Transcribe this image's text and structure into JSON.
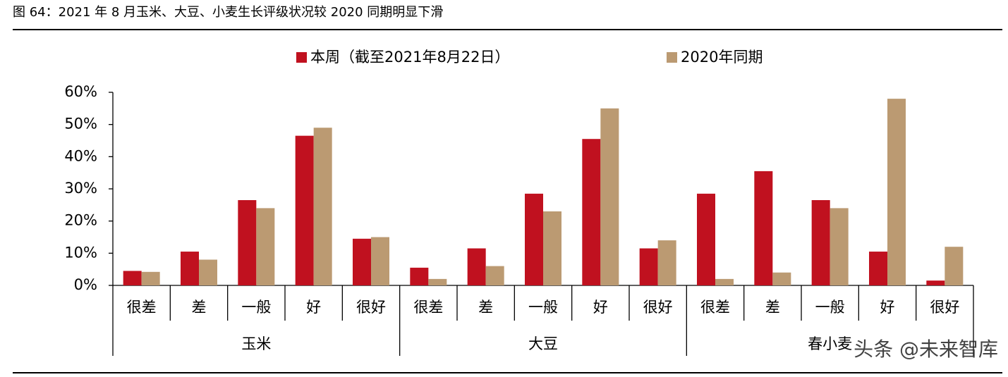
{
  "chart_data": {
    "type": "bar",
    "title": "图 64：2021 年 8 月玉米、大豆、小麦生长评级状况较 2020 同期明显下滑",
    "groups": [
      "玉米",
      "大豆",
      "春小麦"
    ],
    "categories": [
      "很差",
      "差",
      "一般",
      "好",
      "很好",
      "很差",
      "差",
      "一般",
      "好",
      "很好",
      "很差",
      "差",
      "一般",
      "好",
      "很好"
    ],
    "series": [
      {
        "name": "本周（截至2021年8月22日）",
        "color": "#c0111f",
        "values": [
          4.5,
          10.5,
          26.5,
          46.5,
          14.5,
          5.5,
          11.5,
          28.5,
          45.5,
          11.5,
          28.5,
          35.5,
          26.5,
          10.5,
          1.5
        ]
      },
      {
        "name": "2020年同期",
        "color": "#bb9a72",
        "values": [
          4.2,
          8,
          24,
          49,
          15,
          2,
          6,
          23,
          55,
          14,
          2,
          4,
          24,
          58,
          12
        ]
      }
    ],
    "ylim": [
      0,
      60
    ],
    "yticks": [
      {
        "value": 0,
        "label": "0%"
      },
      {
        "value": 10,
        "label": "10%"
      },
      {
        "value": 20,
        "label": "20%"
      },
      {
        "value": 30,
        "label": "30%"
      },
      {
        "value": 40,
        "label": "40%"
      },
      {
        "value": 50,
        "label": "50%"
      },
      {
        "value": 60,
        "label": "60%"
      }
    ],
    "watermark": "头条 @未来智库"
  }
}
